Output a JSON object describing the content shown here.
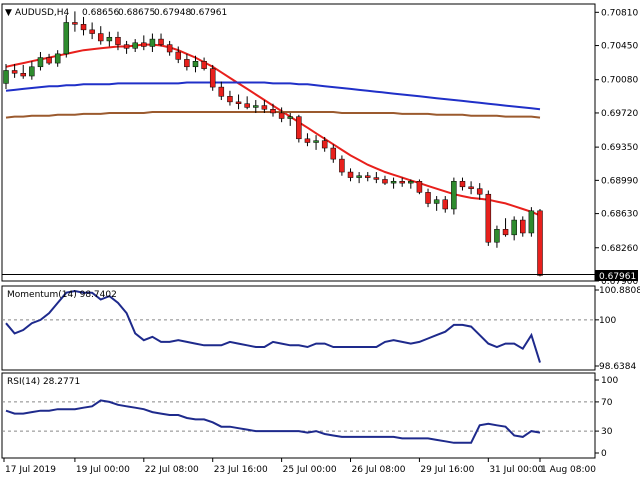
{
  "header": {
    "symbol": "AUDUSD,H4",
    "open": "0.68656",
    "high": "0.68675",
    "low": "0.67948",
    "close": "0.67961"
  },
  "price_badge": "0.67961",
  "momentum_label": "Momentum(14) 98.7402",
  "rsi_label": "RSI(14) 28.2771",
  "colors": {
    "bull": "#2e8b2e",
    "bear": "#e8201c",
    "sma_short": "#e8201c",
    "sma_mid": "#2030c8",
    "sma_long": "#9b5a2e",
    "indicator": "#1e2a8c"
  },
  "chart_data": [
    {
      "type": "candlestick",
      "title": "AUDUSD,H4",
      "x_ticks": [
        "17 Jul 2019",
        "19 Jul 00:00",
        "22 Jul 08:00",
        "23 Jul 16:00",
        "25 Jul 00:00",
        "26 Jul 08:00",
        "29 Jul 16:00",
        "31 Jul 00:00",
        "1 Aug 08:00"
      ],
      "y_ticks": [
        "0.70810",
        "0.70450",
        "0.70080",
        "0.69720",
        "0.69350",
        "0.68990",
        "0.68630",
        "0.68260",
        "0.67900"
      ],
      "ylim": [
        0.679,
        0.709
      ],
      "ohlc": [
        [
          0.7004,
          0.7025,
          0.6998,
          0.7018
        ],
        [
          0.7018,
          0.7025,
          0.701,
          0.7015
        ],
        [
          0.7015,
          0.7024,
          0.7009,
          0.7012
        ],
        [
          0.7012,
          0.7028,
          0.7008,
          0.7022
        ],
        [
          0.7022,
          0.7038,
          0.7018,
          0.7032
        ],
        [
          0.7032,
          0.7036,
          0.7024,
          0.7026
        ],
        [
          0.7026,
          0.704,
          0.7022,
          0.7036
        ],
        [
          0.7036,
          0.7078,
          0.7032,
          0.707
        ],
        [
          0.707,
          0.7082,
          0.706,
          0.7068
        ],
        [
          0.7068,
          0.7076,
          0.7056,
          0.7062
        ],
        [
          0.7062,
          0.707,
          0.7052,
          0.7058
        ],
        [
          0.7058,
          0.7066,
          0.7046,
          0.705
        ],
        [
          0.705,
          0.706,
          0.7044,
          0.7054
        ],
        [
          0.7054,
          0.706,
          0.704,
          0.7046
        ],
        [
          0.7046,
          0.705,
          0.7036,
          0.7042
        ],
        [
          0.7042,
          0.7052,
          0.7038,
          0.7048
        ],
        [
          0.7048,
          0.7056,
          0.704,
          0.7044
        ],
        [
          0.7044,
          0.7058,
          0.7038,
          0.7052
        ],
        [
          0.7052,
          0.7058,
          0.7044,
          0.7046
        ],
        [
          0.7046,
          0.705,
          0.7034,
          0.7038
        ],
        [
          0.7038,
          0.7044,
          0.7026,
          0.703
        ],
        [
          0.703,
          0.7036,
          0.7018,
          0.7022
        ],
        [
          0.7022,
          0.7034,
          0.7016,
          0.7028
        ],
        [
          0.7028,
          0.7032,
          0.7018,
          0.702
        ],
        [
          0.702,
          0.7024,
          0.6996,
          0.7
        ],
        [
          0.7,
          0.7006,
          0.6986,
          0.699
        ],
        [
          0.699,
          0.6996,
          0.698,
          0.6984
        ],
        [
          0.6984,
          0.6992,
          0.6976,
          0.6982
        ],
        [
          0.6982,
          0.699,
          0.6976,
          0.6978
        ],
        [
          0.6978,
          0.6986,
          0.6972,
          0.698
        ],
        [
          0.698,
          0.6986,
          0.6972,
          0.6976
        ],
        [
          0.6976,
          0.6982,
          0.6968,
          0.6972
        ],
        [
          0.6972,
          0.6978,
          0.6962,
          0.6966
        ],
        [
          0.6966,
          0.6972,
          0.6958,
          0.6968
        ],
        [
          0.6968,
          0.697,
          0.694,
          0.6944
        ],
        [
          0.6944,
          0.695,
          0.6936,
          0.694
        ],
        [
          0.694,
          0.6948,
          0.6932,
          0.6942
        ],
        [
          0.6942,
          0.6946,
          0.693,
          0.6934
        ],
        [
          0.6934,
          0.6938,
          0.6918,
          0.6922
        ],
        [
          0.6922,
          0.6926,
          0.6904,
          0.6908
        ],
        [
          0.6908,
          0.6912,
          0.6898,
          0.6902
        ],
        [
          0.6902,
          0.6908,
          0.6896,
          0.6904
        ],
        [
          0.6904,
          0.6908,
          0.6898,
          0.6902
        ],
        [
          0.6902,
          0.6908,
          0.6896,
          0.69
        ],
        [
          0.69,
          0.6904,
          0.6894,
          0.6896
        ],
        [
          0.6896,
          0.6902,
          0.689,
          0.6898
        ],
        [
          0.6898,
          0.6902,
          0.6892,
          0.6896
        ],
        [
          0.6896,
          0.69,
          0.689,
          0.6898
        ],
        [
          0.6898,
          0.69,
          0.6884,
          0.6886
        ],
        [
          0.6886,
          0.689,
          0.687,
          0.6874
        ],
        [
          0.6874,
          0.6882,
          0.6866,
          0.6878
        ],
        [
          0.6878,
          0.6882,
          0.6864,
          0.6868
        ],
        [
          0.6868,
          0.6902,
          0.6862,
          0.6898
        ],
        [
          0.6898,
          0.6902,
          0.6888,
          0.6892
        ],
        [
          0.6892,
          0.6898,
          0.6884,
          0.689
        ],
        [
          0.689,
          0.6896,
          0.6878,
          0.6884
        ],
        [
          0.6884,
          0.6888,
          0.6828,
          0.6832
        ],
        [
          0.6832,
          0.685,
          0.6826,
          0.6846
        ],
        [
          0.6846,
          0.6858,
          0.6838,
          0.684
        ],
        [
          0.684,
          0.686,
          0.6834,
          0.6856
        ],
        [
          0.6856,
          0.686,
          0.6838,
          0.6842
        ],
        [
          0.6842,
          0.687,
          0.6838,
          0.6866
        ],
        [
          0.6866,
          0.6868,
          0.6795,
          0.6796
        ]
      ],
      "series": [
        {
          "color": "#e8201c",
          "values": [
            0.7022,
            0.7024,
            0.7026,
            0.7028,
            0.703,
            0.7032,
            0.7034,
            0.7036,
            0.7038,
            0.704,
            0.7041,
            0.7042,
            0.7043,
            0.7044,
            0.7044,
            0.7045,
            0.7046,
            0.7046,
            0.7045,
            0.7043,
            0.704,
            0.7036,
            0.7032,
            0.7027,
            0.7022,
            0.7016,
            0.701,
            0.7004,
            0.6998,
            0.6992,
            0.6986,
            0.698,
            0.6974,
            0.6968,
            0.6962,
            0.6956,
            0.695,
            0.6944,
            0.6938,
            0.6932,
            0.6926,
            0.6921,
            0.6916,
            0.6912,
            0.6908,
            0.6905,
            0.6902,
            0.6899,
            0.6896,
            0.6893,
            0.689,
            0.6887,
            0.6884,
            0.6882,
            0.688,
            0.6879,
            0.6878,
            0.6876,
            0.6874,
            0.6871,
            0.6868,
            0.6865,
            0.6861
          ]
        },
        {
          "color": "#2030c8",
          "values": [
            0.6996,
            0.6997,
            0.6998,
            0.6999,
            0.7,
            0.7001,
            0.7001,
            0.7002,
            0.7002,
            0.7003,
            0.7003,
            0.7003,
            0.7003,
            0.7004,
            0.7004,
            0.7004,
            0.7004,
            0.7004,
            0.7004,
            0.7004,
            0.7004,
            0.7005,
            0.7005,
            0.7005,
            0.7005,
            0.7005,
            0.7005,
            0.7005,
            0.7005,
            0.7005,
            0.7005,
            0.7004,
            0.7004,
            0.7004,
            0.7003,
            0.7003,
            0.7002,
            0.7001,
            0.7,
            0.6999,
            0.6998,
            0.6997,
            0.6996,
            0.6995,
            0.6994,
            0.6993,
            0.6992,
            0.6991,
            0.699,
            0.6989,
            0.6988,
            0.6987,
            0.6986,
            0.6985,
            0.6984,
            0.6983,
            0.6982,
            0.6981,
            0.698,
            0.6979,
            0.6978,
            0.6977,
            0.6976
          ]
        },
        {
          "color": "#9b5a2e",
          "values": [
            0.6967,
            0.6968,
            0.6968,
            0.6969,
            0.6969,
            0.6969,
            0.697,
            0.697,
            0.697,
            0.6971,
            0.6971,
            0.6971,
            0.6972,
            0.6972,
            0.6972,
            0.6972,
            0.6972,
            0.6973,
            0.6973,
            0.6973,
            0.6973,
            0.6973,
            0.6973,
            0.6973,
            0.6973,
            0.6973,
            0.6973,
            0.6973,
            0.6973,
            0.6973,
            0.6973,
            0.6973,
            0.6973,
            0.6973,
            0.6973,
            0.6973,
            0.6973,
            0.6973,
            0.6973,
            0.6972,
            0.6972,
            0.6972,
            0.6972,
            0.6972,
            0.6972,
            0.6972,
            0.6971,
            0.6971,
            0.6971,
            0.6971,
            0.697,
            0.697,
            0.697,
            0.697,
            0.6969,
            0.6969,
            0.6969,
            0.6969,
            0.6968,
            0.6968,
            0.6968,
            0.6968,
            0.6967
          ]
        }
      ]
    },
    {
      "type": "line",
      "title": "Momentum(14) 98.7402",
      "y_ticks": [
        "100.8808",
        "100",
        "98.6384"
      ],
      "ylim": [
        98.6384,
        100.8808
      ],
      "reference_lines": [
        100
      ],
      "series": [
        {
          "color": "#1e2a8c",
          "values": [
            99.9,
            99.6,
            99.7,
            99.9,
            100.0,
            100.2,
            100.5,
            100.8,
            100.85,
            100.8,
            100.8,
            100.6,
            100.7,
            100.5,
            100.2,
            99.6,
            99.4,
            99.5,
            99.35,
            99.35,
            99.4,
            99.35,
            99.3,
            99.25,
            99.25,
            99.25,
            99.35,
            99.3,
            99.25,
            99.2,
            99.2,
            99.35,
            99.3,
            99.25,
            99.25,
            99.2,
            99.3,
            99.3,
            99.2,
            99.2,
            99.2,
            99.2,
            99.2,
            99.2,
            99.35,
            99.4,
            99.35,
            99.3,
            99.35,
            99.45,
            99.55,
            99.65,
            99.85,
            99.85,
            99.8,
            99.55,
            99.3,
            99.2,
            99.3,
            99.3,
            99.15,
            99.55,
            98.74
          ]
        }
      ]
    },
    {
      "type": "line",
      "title": "RSI(14) 28.2771",
      "y_ticks": [
        "100",
        "70",
        "30",
        "0"
      ],
      "ylim": [
        0,
        100
      ],
      "reference_lines": [
        70,
        30
      ],
      "series": [
        {
          "color": "#1e2a8c",
          "values": [
            58,
            54,
            54,
            56,
            58,
            58,
            60,
            60,
            60,
            62,
            64,
            72,
            70,
            66,
            64,
            62,
            60,
            56,
            54,
            52,
            52,
            48,
            46,
            46,
            42,
            36,
            36,
            34,
            32,
            30,
            30,
            30,
            30,
            30,
            30,
            28,
            30,
            26,
            24,
            22,
            22,
            22,
            22,
            22,
            22,
            22,
            20,
            20,
            20,
            20,
            18,
            16,
            14,
            14,
            14,
            38,
            40,
            38,
            36,
            24,
            22,
            30,
            28
          ]
        }
      ]
    }
  ]
}
